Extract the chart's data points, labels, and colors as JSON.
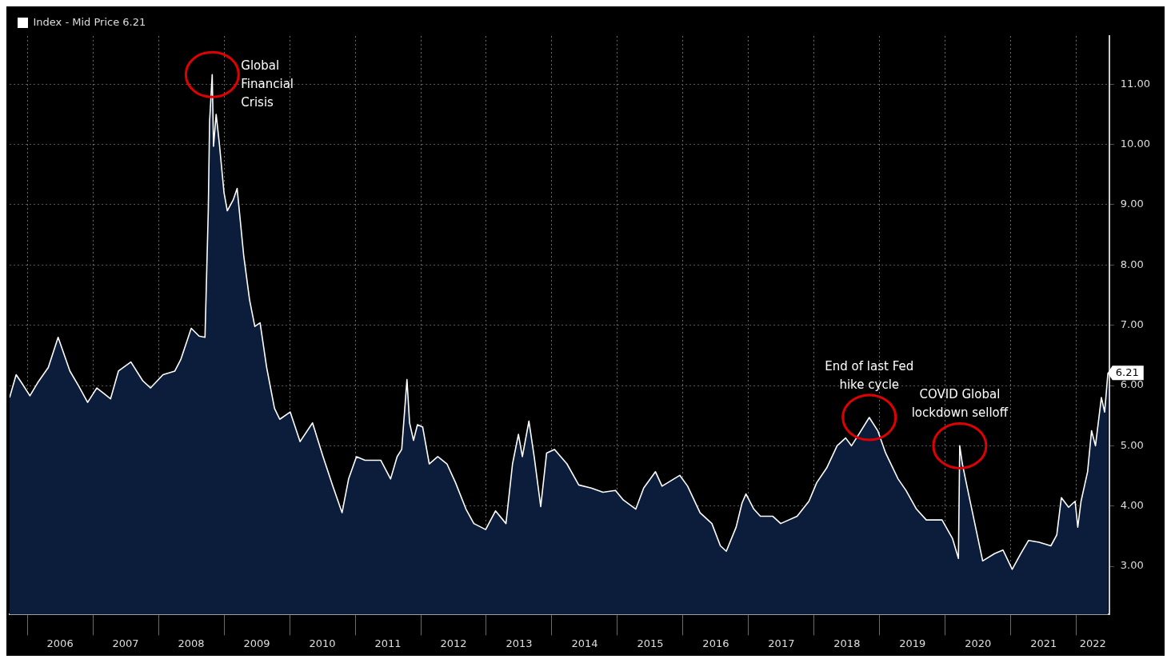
{
  "chart_data": {
    "type": "area",
    "x": [
      2005.73,
      2005.83,
      2005.91,
      2006.04,
      2006.16,
      2006.32,
      2006.47,
      2006.65,
      2006.78,
      2006.92,
      2007.06,
      2007.27,
      2007.39,
      2007.58,
      2007.76,
      2007.88,
      2008.07,
      2008.25,
      2008.34,
      2008.5,
      2008.62,
      2008.71,
      2008.76,
      2008.78,
      2008.82,
      2008.84,
      2008.88,
      2008.93,
      2009.0,
      2009.05,
      2009.14,
      2009.2,
      2009.3,
      2009.39,
      2009.47,
      2009.55,
      2009.65,
      2009.77,
      2009.85,
      2010.01,
      2010.16,
      2010.35,
      2010.51,
      2010.66,
      2010.8,
      2010.9,
      2011.02,
      2011.15,
      2011.39,
      2011.54,
      2011.64,
      2011.71,
      2011.79,
      2011.83,
      2011.89,
      2011.95,
      2012.03,
      2012.13,
      2012.26,
      2012.4,
      2012.53,
      2012.69,
      2012.81,
      2012.99,
      2013.14,
      2013.3,
      2013.4,
      2013.49,
      2013.55,
      2013.65,
      2013.73,
      2013.83,
      2013.92,
      2014.04,
      2014.23,
      2014.41,
      2014.6,
      2014.78,
      2014.97,
      2015.09,
      2015.28,
      2015.4,
      2015.58,
      2015.68,
      2015.95,
      2016.07,
      2016.26,
      2016.44,
      2016.57,
      2016.66,
      2016.81,
      2016.9,
      2016.96,
      2017.08,
      2017.18,
      2017.37,
      2017.49,
      2017.74,
      2017.92,
      2018.04,
      2018.19,
      2018.35,
      2018.48,
      2018.57,
      2018.68,
      2018.84,
      2018.97,
      2019.09,
      2019.28,
      2019.4,
      2019.56,
      2019.71,
      2019.95,
      2020.11,
      2020.2,
      2020.22,
      2020.26,
      2020.33,
      2020.45,
      2020.57,
      2020.75,
      2020.88,
      2021.02,
      2021.15,
      2021.27,
      2021.43,
      2021.61,
      2021.7,
      2021.77,
      2021.88,
      2021.98,
      2022.02,
      2022.07,
      2022.17,
      2022.23,
      2022.29,
      2022.38,
      2022.43,
      2022.48
    ],
    "series": [
      {
        "name": "Index - Mid Price 6.21",
        "color": "#ffffff",
        "values": [
          5.8,
          6.18,
          6.05,
          5.83,
          6.05,
          6.3,
          6.8,
          6.24,
          6.0,
          5.72,
          5.96,
          5.78,
          6.24,
          6.39,
          6.08,
          5.96,
          6.18,
          6.24,
          6.43,
          6.95,
          6.82,
          6.8,
          8.9,
          10.38,
          11.16,
          9.97,
          10.5,
          10.0,
          9.2,
          8.9,
          9.08,
          9.27,
          8.16,
          7.42,
          6.98,
          7.04,
          6.3,
          5.62,
          5.44,
          5.56,
          5.07,
          5.38,
          4.82,
          4.33,
          3.89,
          4.45,
          4.82,
          4.76,
          4.76,
          4.45,
          4.82,
          4.94,
          6.1,
          5.38,
          5.09,
          5.35,
          5.31,
          4.7,
          4.82,
          4.7,
          4.39,
          3.95,
          3.71,
          3.61,
          3.92,
          3.71,
          4.7,
          5.19,
          4.82,
          5.41,
          4.82,
          3.99,
          4.88,
          4.94,
          4.7,
          4.35,
          4.3,
          4.23,
          4.26,
          4.1,
          3.95,
          4.3,
          4.57,
          4.33,
          4.51,
          4.33,
          3.89,
          3.71,
          3.34,
          3.25,
          3.65,
          4.05,
          4.2,
          3.95,
          3.83,
          3.83,
          3.71,
          3.83,
          4.08,
          4.39,
          4.63,
          5.0,
          5.13,
          5.0,
          5.19,
          5.47,
          5.25,
          4.88,
          4.45,
          4.26,
          3.95,
          3.77,
          3.77,
          3.46,
          3.13,
          5.0,
          4.7,
          4.33,
          3.71,
          3.09,
          3.21,
          3.27,
          2.95,
          3.21,
          3.43,
          3.4,
          3.34,
          3.52,
          4.14,
          3.98,
          4.08,
          3.65,
          4.08,
          4.57,
          5.25,
          5.0,
          5.8,
          5.56,
          6.21
        ]
      }
    ],
    "xlim": [
      2005.73,
      2022.5
    ],
    "xticks": [
      {
        "value": 2006,
        "label": null
      },
      {
        "value": 2006.5,
        "label": "2006"
      },
      {
        "value": 2007,
        "label": null
      },
      {
        "value": 2007.5,
        "label": "2007"
      },
      {
        "value": 2008,
        "label": null
      },
      {
        "value": 2008.5,
        "label": "2008"
      },
      {
        "value": 2009,
        "label": null
      },
      {
        "value": 2009.5,
        "label": "2009"
      },
      {
        "value": 2010,
        "label": null
      },
      {
        "value": 2010.5,
        "label": "2010"
      },
      {
        "value": 2011,
        "label": null
      },
      {
        "value": 2011.5,
        "label": "2011"
      },
      {
        "value": 2012,
        "label": null
      },
      {
        "value": 2012.5,
        "label": "2012"
      },
      {
        "value": 2013,
        "label": null
      },
      {
        "value": 2013.5,
        "label": "2013"
      },
      {
        "value": 2014,
        "label": null
      },
      {
        "value": 2014.5,
        "label": "2014"
      },
      {
        "value": 2015,
        "label": null
      },
      {
        "value": 2015.5,
        "label": "2015"
      },
      {
        "value": 2016,
        "label": null
      },
      {
        "value": 2016.5,
        "label": "2016"
      },
      {
        "value": 2017,
        "label": null
      },
      {
        "value": 2017.5,
        "label": "2017"
      },
      {
        "value": 2018,
        "label": null
      },
      {
        "value": 2018.5,
        "label": "2018"
      },
      {
        "value": 2019,
        "label": null
      },
      {
        "value": 2019.5,
        "label": "2019"
      },
      {
        "value": 2020,
        "label": null
      },
      {
        "value": 2020.5,
        "label": "2020"
      },
      {
        "value": 2021,
        "label": null
      },
      {
        "value": 2021.5,
        "label": "2021"
      },
      {
        "value": 2022,
        "label": null
      },
      {
        "value": 2022.25,
        "label": "2022"
      }
    ],
    "ylim": [
      2.2,
      11.8
    ],
    "yticks": [
      {
        "value": 3,
        "label": "3.00"
      },
      {
        "value": 4,
        "label": "4.00"
      },
      {
        "value": 5,
        "label": "5.00"
      },
      {
        "value": 6,
        "label": "6.00"
      },
      {
        "value": 7,
        "label": "7.00"
      },
      {
        "value": 8,
        "label": "8.00"
      },
      {
        "value": 9,
        "label": "9.00"
      },
      {
        "value": 10,
        "label": "10.00"
      },
      {
        "value": 11,
        "label": "11.00"
      }
    ],
    "annotations": [
      {
        "text": "Global\nFinancial\nCrisis",
        "x": 2008.82,
        "y": 11.16
      },
      {
        "text": "End of last Fed\nhike cycle",
        "x": 2018.84,
        "y": 5.47
      },
      {
        "text": "COVID Global\nlockdown selloff",
        "x": 2020.22,
        "y": 5.0
      },
      {
        "text": "6.21",
        "x": 2022.48,
        "y": 6.21
      }
    ],
    "grid": true,
    "legend": "top left",
    "marker": "none",
    "line_style": "solid"
  }
}
